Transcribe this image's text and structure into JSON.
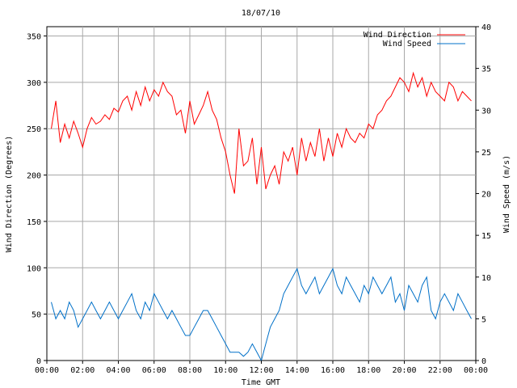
{
  "chart_data": {
    "type": "line",
    "title": "18/07/10",
    "xlabel": "Time GMT",
    "ylabel": "Wind Direction (Degrees)",
    "y2label": "Wind Speed (m/s)",
    "x_ticks": [
      "00:00",
      "02:00",
      "04:00",
      "06:00",
      "08:00",
      "10:00",
      "12:00",
      "14:00",
      "16:00",
      "18:00",
      "20:00",
      "22:00",
      "00:00"
    ],
    "y_ticks": [
      "0",
      "50",
      "100",
      "150",
      "200",
      "250",
      "300",
      "350"
    ],
    "y2_ticks": [
      "0",
      "5",
      "10",
      "15",
      "20",
      "25",
      "30",
      "35",
      "40"
    ],
    "xlim_hours": [
      0,
      24
    ],
    "ylim": [
      0,
      360
    ],
    "y2lim": [
      0,
      40
    ],
    "grid": true,
    "legend": "top-right",
    "series": [
      {
        "name": "Wind Direction",
        "axis": "left",
        "color": "#ff0000",
        "x_hours": [
          0.25,
          0.5,
          0.75,
          1,
          1.25,
          1.5,
          1.75,
          2,
          2.25,
          2.5,
          2.75,
          3,
          3.25,
          3.5,
          3.75,
          4,
          4.25,
          4.5,
          4.75,
          5,
          5.25,
          5.5,
          5.75,
          6,
          6.25,
          6.5,
          6.75,
          7,
          7.25,
          7.5,
          7.75,
          8,
          8.25,
          8.5,
          8.75,
          9,
          9.25,
          9.5,
          9.75,
          10,
          10.25,
          10.5,
          10.75,
          11,
          11.25,
          11.5,
          11.75,
          12,
          12.25,
          12.5,
          12.75,
          13,
          13.25,
          13.5,
          13.75,
          14,
          14.25,
          14.5,
          14.75,
          15,
          15.25,
          15.5,
          15.75,
          16,
          16.25,
          16.5,
          16.75,
          17,
          17.25,
          17.5,
          17.75,
          18,
          18.25,
          18.5,
          18.75,
          19,
          19.25,
          19.5,
          19.75,
          20,
          20.25,
          20.5,
          20.75,
          21,
          21.25,
          21.5,
          21.75,
          22,
          22.25,
          22.5,
          22.75,
          23,
          23.25,
          23.5,
          23.75
        ],
        "values": [
          250,
          280,
          235,
          255,
          240,
          258,
          245,
          230,
          250,
          262,
          255,
          258,
          265,
          260,
          272,
          268,
          280,
          285,
          270,
          290,
          275,
          295,
          280,
          292,
          285,
          300,
          290,
          285,
          265,
          270,
          245,
          280,
          255,
          265,
          275,
          290,
          270,
          260,
          240,
          225,
          200,
          180,
          250,
          210,
          215,
          240,
          190,
          230,
          185,
          200,
          210,
          190,
          225,
          215,
          230,
          200,
          240,
          215,
          235,
          220,
          250,
          215,
          240,
          220,
          245,
          230,
          250,
          240,
          235,
          245,
          240,
          255,
          250,
          265,
          270,
          280,
          285,
          295,
          305,
          300,
          290,
          310,
          295,
          305,
          285,
          300,
          290,
          285,
          280,
          300,
          295,
          280,
          290,
          285,
          280
        ]
      },
      {
        "name": "Wind Speed",
        "axis": "right",
        "color": "#0070c8",
        "x_hours": [
          0.25,
          0.5,
          0.75,
          1,
          1.25,
          1.5,
          1.75,
          2,
          2.25,
          2.5,
          2.75,
          3,
          3.25,
          3.5,
          3.75,
          4,
          4.25,
          4.5,
          4.75,
          5,
          5.25,
          5.5,
          5.75,
          6,
          6.25,
          6.5,
          6.75,
          7,
          7.25,
          7.5,
          7.75,
          8,
          8.25,
          8.5,
          8.75,
          9,
          9.25,
          9.5,
          9.75,
          10,
          10.25,
          10.5,
          10.75,
          11,
          11.25,
          11.5,
          11.75,
          12,
          12.25,
          12.5,
          12.75,
          13,
          13.25,
          13.5,
          13.75,
          14,
          14.25,
          14.5,
          14.75,
          15,
          15.25,
          15.5,
          15.75,
          16,
          16.25,
          16.5,
          16.75,
          17,
          17.25,
          17.5,
          17.75,
          18,
          18.25,
          18.5,
          18.75,
          19,
          19.25,
          19.5,
          19.75,
          20,
          20.25,
          20.5,
          20.75,
          21,
          21.25,
          21.5,
          21.75,
          22,
          22.25,
          22.5,
          22.75,
          23,
          23.25,
          23.5,
          23.75
        ],
        "values": [
          7,
          5,
          6,
          5,
          7,
          6,
          4,
          5,
          6,
          7,
          6,
          5,
          6,
          7,
          6,
          5,
          6,
          7,
          8,
          6,
          5,
          7,
          6,
          8,
          7,
          6,
          5,
          6,
          5,
          4,
          3,
          3,
          4,
          5,
          6,
          6,
          5,
          4,
          3,
          2,
          1,
          1,
          1,
          0.5,
          1,
          2,
          1,
          0,
          2,
          4,
          5,
          6,
          8,
          9,
          10,
          11,
          9,
          8,
          9,
          10,
          8,
          9,
          10,
          11,
          9,
          8,
          10,
          9,
          8,
          7,
          9,
          8,
          10,
          9,
          8,
          9,
          10,
          7,
          8,
          6,
          9,
          8,
          7,
          9,
          10,
          6,
          5,
          7,
          8,
          7,
          6,
          8,
          7,
          6,
          5
        ]
      }
    ]
  }
}
